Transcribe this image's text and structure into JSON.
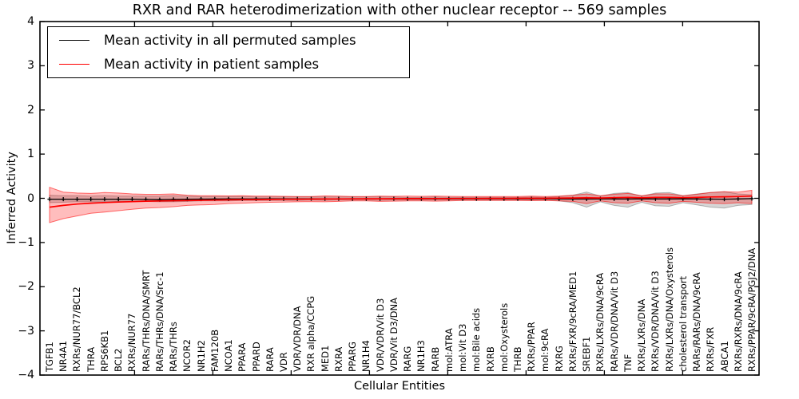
{
  "chart_data": {
    "type": "line",
    "title": "RXR and RAR heterodimerization with other nuclear receptor -- 569 samples",
    "xlabel": "Cellular Entities",
    "ylabel": "Inferred Activity",
    "ylim": [
      -4,
      4
    ],
    "y_tick_labels": [
      "4",
      "3",
      "2",
      "1",
      "0",
      "−1",
      "−2",
      "−3",
      "−4"
    ],
    "grid": false,
    "legend_position": "upper left",
    "x_categories": [
      "TGFB1",
      "NR4A1",
      "RXRs/NUR77/BCL2",
      "THRA",
      "RPS6KB1",
      "BCL2",
      "RXRs/NUR77",
      "RARs/THRs/DNA/SMRT",
      "RARs/THRs/DNA/Src-1",
      "RARs/THRs",
      "NCOR2",
      "NR1H2",
      "FAM120B",
      "NCOA1",
      "PPARA",
      "PPARD",
      "RARA",
      "VDR",
      "VDR/VDR/DNA",
      "RXR alpha/CCPG",
      "MED1",
      "RXRA",
      "PPARG",
      "NR1H4",
      "VDR/VDR/Vit D3",
      "VDR/Vit D3/DNA",
      "RARG",
      "NR1H3",
      "RARB",
      "mol:ATRA",
      "mol:Vit D3",
      "mol:Bile acids",
      "RXRB",
      "mol:Oxysterols",
      "THRB",
      "RXRs/PPAR",
      "mol:9cRA",
      "RXRG",
      "RXRs/FXR/9cRA/MED1",
      "SREBF1",
      "RXRs/LXRs/DNA/9cRA",
      "RARs/VDR/DNA/Vit D3",
      "TNF",
      "RXRs/LXRs/DNA",
      "RXRs/VDR/DNA/Vit D3",
      "RXRs/LXRs/DNA/Oxysterols",
      "cholesterol transport",
      "RARs/RARs/DNA/9cRA",
      "RXRs/FXR",
      "ABCA1",
      "RXRs/RXRs/DNA/9cRA",
      "RXRs/PPAR/9cRA/PGJ2/DNA"
    ],
    "series": [
      {
        "name": "Mean activity in all permuted samples",
        "color": "#000000",
        "marker": "plus",
        "values": [
          -0.02,
          -0.02,
          -0.02,
          -0.02,
          -0.02,
          -0.02,
          -0.02,
          -0.025,
          -0.03,
          -0.025,
          -0.02,
          -0.018,
          -0.016,
          -0.015,
          -0.015,
          -0.014,
          -0.013,
          -0.012,
          -0.012,
          -0.011,
          -0.011,
          -0.01,
          -0.01,
          -0.01,
          -0.01,
          -0.01,
          -0.01,
          -0.01,
          -0.01,
          -0.01,
          -0.01,
          -0.01,
          -0.01,
          -0.01,
          -0.01,
          -0.01,
          -0.01,
          -0.012,
          -0.014,
          -0.016,
          -0.012,
          -0.015,
          -0.016,
          -0.012,
          -0.015,
          -0.015,
          -0.012,
          -0.014,
          -0.018,
          -0.02,
          -0.015,
          -0.008
        ],
        "band_upper": [
          0.07,
          0.06,
          0.06,
          0.05,
          0.06,
          0.05,
          0.05,
          0.05,
          0.05,
          0.06,
          0.05,
          0.04,
          0.04,
          0.04,
          0.04,
          0.03,
          0.03,
          0.03,
          0.03,
          0.03,
          0.03,
          0.03,
          0.03,
          0.03,
          0.03,
          0.03,
          0.02,
          0.02,
          0.03,
          0.02,
          0.02,
          0.02,
          0.02,
          0.02,
          0.02,
          0.03,
          0.02,
          0.04,
          0.07,
          0.14,
          0.05,
          0.11,
          0.13,
          0.05,
          0.12,
          0.13,
          0.06,
          0.1,
          0.13,
          0.15,
          0.1,
          0.08
        ],
        "band_lower": [
          -0.1,
          -0.09,
          -0.08,
          -0.08,
          -0.08,
          -0.07,
          -0.07,
          -0.07,
          -0.08,
          -0.08,
          -0.07,
          -0.06,
          -0.06,
          -0.06,
          -0.05,
          -0.05,
          -0.05,
          -0.05,
          -0.05,
          -0.04,
          -0.05,
          -0.04,
          -0.04,
          -0.04,
          -0.05,
          -0.04,
          -0.04,
          -0.04,
          -0.04,
          -0.04,
          -0.04,
          -0.04,
          -0.04,
          -0.04,
          -0.04,
          -0.04,
          -0.04,
          -0.06,
          -0.1,
          -0.2,
          -0.08,
          -0.16,
          -0.2,
          -0.09,
          -0.17,
          -0.18,
          -0.1,
          -0.15,
          -0.2,
          -0.22,
          -0.16,
          -0.14
        ]
      },
      {
        "name": "Mean activity in patient samples",
        "color": "#ff0000",
        "marker": "none",
        "values": [
          -0.2,
          -0.16,
          -0.13,
          -0.11,
          -0.095,
          -0.085,
          -0.075,
          -0.065,
          -0.06,
          -0.055,
          -0.05,
          -0.045,
          -0.04,
          -0.035,
          -0.03,
          -0.028,
          -0.025,
          -0.022,
          -0.02,
          -0.018,
          -0.016,
          -0.014,
          -0.012,
          -0.011,
          -0.01,
          -0.009,
          -0.008,
          -0.007,
          -0.006,
          -0.005,
          -0.004,
          -0.003,
          -0.002,
          -0.001,
          0,
          0,
          0,
          0.005,
          0.008,
          0.01,
          0.008,
          0.015,
          0.02,
          0.01,
          0.02,
          0.02,
          0.015,
          0.02,
          0.03,
          0.035,
          0.04,
          0.05
        ],
        "band_upper": [
          0.25,
          0.14,
          0.12,
          0.11,
          0.13,
          0.12,
          0.1,
          0.09,
          0.09,
          0.1,
          0.07,
          0.06,
          0.06,
          0.055,
          0.06,
          0.05,
          0.05,
          0.045,
          0.04,
          0.04,
          0.055,
          0.05,
          0.04,
          0.04,
          0.05,
          0.045,
          0.05,
          0.045,
          0.05,
          0.045,
          0.04,
          0.04,
          0.04,
          0.04,
          0.04,
          0.05,
          0.04,
          0.05,
          0.07,
          0.1,
          0.06,
          0.09,
          0.11,
          0.06,
          0.1,
          0.1,
          0.06,
          0.09,
          0.13,
          0.15,
          0.14,
          0.18
        ],
        "band_lower": [
          -0.55,
          -0.46,
          -0.4,
          -0.34,
          -0.31,
          -0.28,
          -0.25,
          -0.22,
          -0.21,
          -0.19,
          -0.16,
          -0.15,
          -0.14,
          -0.12,
          -0.11,
          -0.1,
          -0.09,
          -0.085,
          -0.08,
          -0.075,
          -0.08,
          -0.07,
          -0.06,
          -0.06,
          -0.07,
          -0.065,
          -0.06,
          -0.06,
          -0.065,
          -0.06,
          -0.05,
          -0.05,
          -0.05,
          -0.05,
          -0.05,
          -0.055,
          -0.05,
          -0.06,
          -0.07,
          -0.12,
          -0.06,
          -0.1,
          -0.11,
          -0.06,
          -0.1,
          -0.11,
          -0.07,
          -0.09,
          -0.11,
          -0.12,
          -0.1,
          -0.12
        ]
      }
    ]
  }
}
